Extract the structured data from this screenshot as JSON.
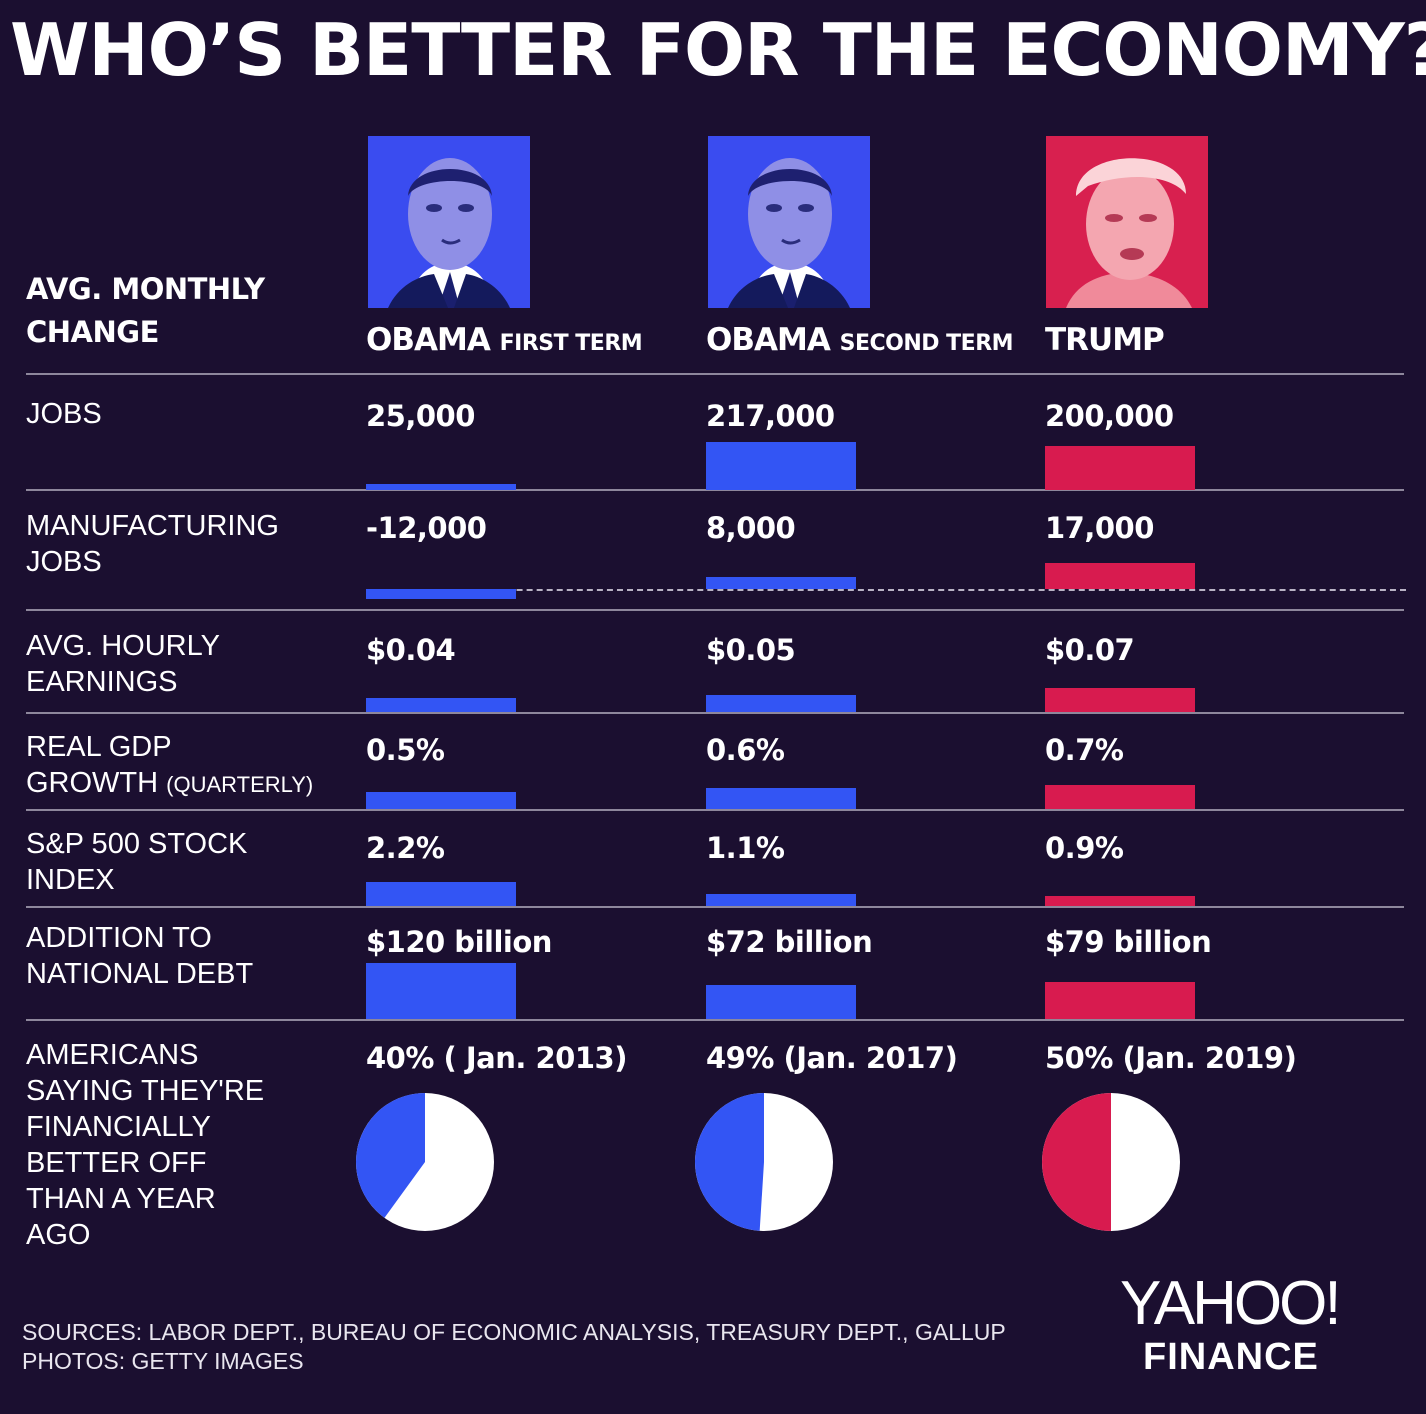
{
  "title": "WHO’S BETTER FOR THE ECONOMY?",
  "corner_header": [
    "AVG. MONTHLY",
    "CHANGE"
  ],
  "columns": [
    {
      "name": "OBAMA",
      "sub": "FIRST TERM",
      "color": "#3355f4"
    },
    {
      "name": "OBAMA",
      "sub": "SECOND TERM",
      "color": "#3355f4"
    },
    {
      "name": "TRUMP",
      "sub": "",
      "color": "#d81b4f"
    }
  ],
  "rows": [
    {
      "label_lines": [
        "JOBS"
      ],
      "label_small": "",
      "values": [
        "25,000",
        "217,000",
        "200,000"
      ]
    },
    {
      "label_lines": [
        "MANUFACTURING",
        "JOBS"
      ],
      "label_small": "",
      "values": [
        "-12,000",
        "8,000",
        "17,000"
      ]
    },
    {
      "label_lines": [
        "AVG. HOURLY",
        "EARNINGS"
      ],
      "label_small": "",
      "values": [
        "$0.04",
        "$0.05",
        "$0.07"
      ]
    },
    {
      "label_lines": [
        "REAL GDP",
        "GROWTH"
      ],
      "label_small": "(QUARTERLY)",
      "values": [
        "0.5%",
        "0.6%",
        "0.7%"
      ]
    },
    {
      "label_lines": [
        "S&P 500 STOCK",
        "INDEX"
      ],
      "label_small": "",
      "values": [
        "2.2%",
        "1.1%",
        "0.9%"
      ]
    },
    {
      "label_lines": [
        "ADDITION TO",
        "NATIONAL DEBT"
      ],
      "label_small": "",
      "values": [
        "$120 billion",
        "$72 billion",
        "$79 billion"
      ]
    },
    {
      "label_lines": [
        "AMERICANS",
        "SAYING THEY'RE",
        "FINANCIALLY",
        "BETTER OFF",
        "THAN A YEAR",
        "AGO"
      ],
      "label_small": "",
      "values": [
        "40% ( Jan. 2013)",
        "49% (Jan. 2017)",
        "50% (Jan. 2019)"
      ]
    }
  ],
  "chart_data": [
    {
      "type": "bar",
      "title": "JOBS",
      "categories": [
        "OBAMA FIRST TERM",
        "OBAMA SECOND TERM",
        "TRUMP"
      ],
      "values": [
        25000,
        217000,
        200000
      ]
    },
    {
      "type": "bar",
      "title": "MANUFACTURING JOBS",
      "categories": [
        "OBAMA FIRST TERM",
        "OBAMA SECOND TERM",
        "TRUMP"
      ],
      "values": [
        -12000,
        8000,
        17000
      ]
    },
    {
      "type": "bar",
      "title": "AVG. HOURLY EARNINGS",
      "categories": [
        "OBAMA FIRST TERM",
        "OBAMA SECOND TERM",
        "TRUMP"
      ],
      "values": [
        0.04,
        0.05,
        0.07
      ]
    },
    {
      "type": "bar",
      "title": "REAL GDP GROWTH (QUARTERLY)",
      "categories": [
        "OBAMA FIRST TERM",
        "OBAMA SECOND TERM",
        "TRUMP"
      ],
      "values": [
        0.5,
        0.6,
        0.7
      ]
    },
    {
      "type": "bar",
      "title": "S&P 500 STOCK INDEX",
      "categories": [
        "OBAMA FIRST TERM",
        "OBAMA SECOND TERM",
        "TRUMP"
      ],
      "values": [
        2.2,
        1.1,
        0.9
      ]
    },
    {
      "type": "bar",
      "title": "ADDITION TO NATIONAL DEBT",
      "categories": [
        "OBAMA FIRST TERM",
        "OBAMA SECOND TERM",
        "TRUMP"
      ],
      "values": [
        120,
        72,
        79
      ]
    },
    {
      "type": "pie",
      "title": "AMERICANS SAYING THEY'RE FINANCIALLY BETTER OFF THAN A YEAR AGO",
      "categories": [
        "OBAMA FIRST TERM",
        "OBAMA SECOND TERM",
        "TRUMP"
      ],
      "values": [
        40,
        49,
        50
      ]
    }
  ],
  "sources": "SOURCES:  LABOR DEPT., BUREAU OF ECONOMIC ANALYSIS, TREASURY DEPT., GALLUP",
  "photos_credit": "PHOTOS: GETTY IMAGES",
  "brand": {
    "line1": "YAHOO!",
    "line2": "FINANCE"
  }
}
